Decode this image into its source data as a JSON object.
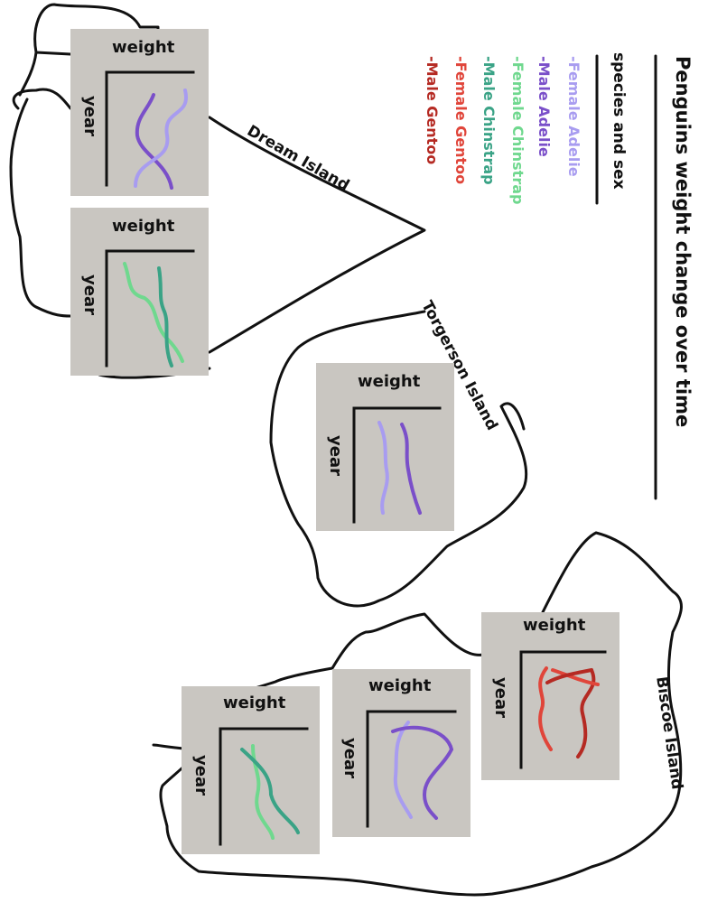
{
  "title": "Penguins weight change over time",
  "legend": {
    "heading": "species and sex",
    "items": [
      {
        "label": "-Female Adelie",
        "color": "#a89cf0"
      },
      {
        "label": "-Male Adelie",
        "color": "#7a4fc9"
      },
      {
        "label": "-Female Chinstrap",
        "color": "#6fd88e"
      },
      {
        "label": "-Male Chinstrap",
        "color": "#3aa386"
      },
      {
        "label": "-Female Gentoo",
        "color": "#e0453a"
      },
      {
        "label": "-Male Gentoo",
        "color": "#b52a23"
      }
    ]
  },
  "islands": {
    "dream": "Dream Island",
    "torgerson": "Torgerson Island",
    "biscoe": "Biscoe Island"
  },
  "panels": [
    {
      "id": "dream-adelie",
      "xlabel": "weight",
      "ylabel": "year",
      "series": [
        "Male Adelie",
        "Female Adelie"
      ]
    },
    {
      "id": "dream-chinstrap",
      "xlabel": "weight",
      "ylabel": "year",
      "series": [
        "Female Chinstrap",
        "Male Chinstrap"
      ]
    },
    {
      "id": "torgerson-adelie",
      "xlabel": "weight",
      "ylabel": "year",
      "series": [
        "Female Adelie",
        "Male Adelie"
      ]
    },
    {
      "id": "biscoe-gentoo",
      "xlabel": "weight",
      "ylabel": "year",
      "series": [
        "Female Gentoo",
        "Male Gentoo"
      ]
    },
    {
      "id": "biscoe-adelie",
      "xlabel": "weight",
      "ylabel": "year",
      "series": [
        "Female Adelie",
        "Male Adelie"
      ]
    },
    {
      "id": "biscoe-chinstrap",
      "xlabel": "weight",
      "ylabel": "year",
      "series": [
        "Female Chinstrap",
        "Male Chinstrap"
      ]
    }
  ]
}
